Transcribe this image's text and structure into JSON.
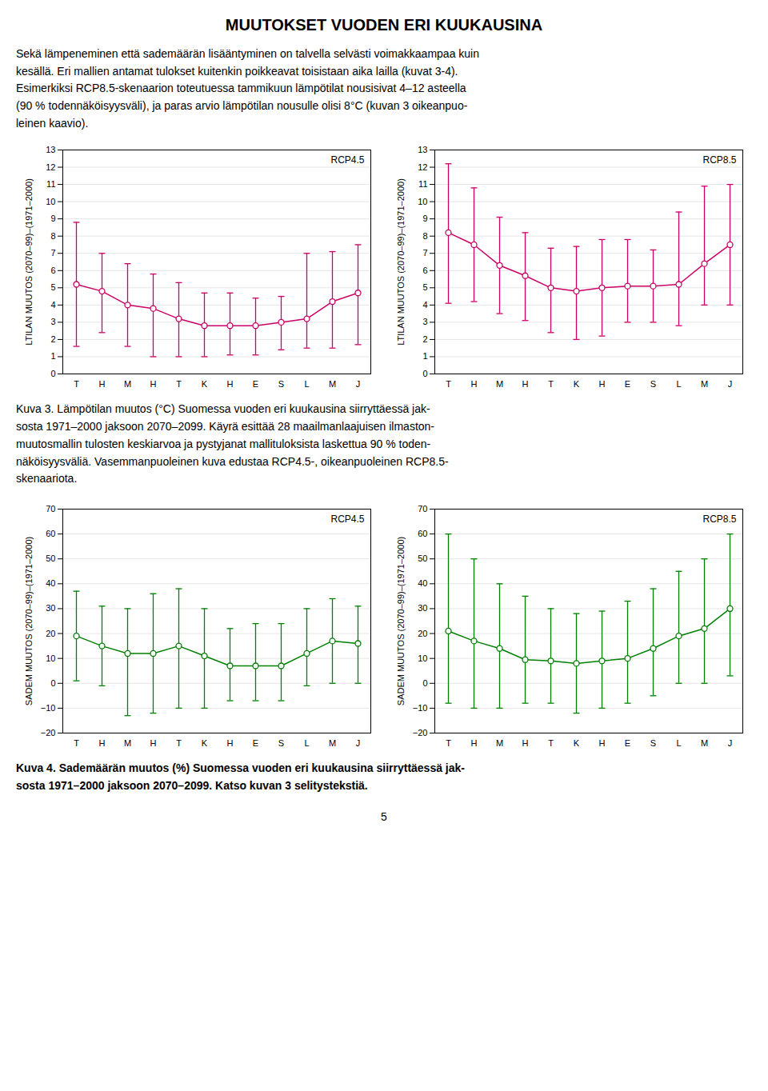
{
  "title": "MUUTOKSET VUODEN ERI KUUKAUSINA",
  "paragraph": [
    "Sekä lämpeneminen että sademäärän lisääntyminen on talvella selvästi voimakkaampaa kuin",
    "kesällä. Eri mallien antamat tulokset kuitenkin poikkeavat toisistaan aika lailla (kuvat 3-4).",
    "Esimerkiksi RCP8.5-skenaarion toteutuessa tammikuun lämpötilat nousisivat 4–12 asteella",
    "(90 % todennäköisyysväli), ja paras arvio lämpötilan nousulle olisi 8°C (kuvan 3 oikeanpuo-",
    "leinen kaavio)."
  ],
  "captions": [
    [
      "Kuva 3. Lämpötilan muutos (°C) Suomessa vuoden eri kuukausina siirryttäessä jak-",
      "sosta 1971–2000 jaksoon 2070–2099. Käyrä esittää 28 maailmanlaajuisen ilmaston-",
      "muutosmallin tulosten keskiarvoa ja pystyjanat mallituloksista laskettua 90 % toden-",
      "näköisyysväliä. Vasemmanpuoleinen kuva edustaa RCP4.5-, oikeanpuoleinen RCP8.5-",
      "skenaariota."
    ],
    [
      "Kuva 4. Sademäärän muutos (%) Suomessa vuoden eri kuukausina siirryttäessä jak-",
      "sosta 1971–2000 jaksoon 2070–2099. Katso kuvan 3 selitystekstiä."
    ]
  ],
  "page_number": "5",
  "chart_data": [
    {
      "type": "line",
      "annotation": "RCP4.5",
      "categories": [
        "T",
        "H",
        "M",
        "H",
        "T",
        "K",
        "H",
        "E",
        "S",
        "L",
        "M",
        "J"
      ],
      "ylabel": "LTILAN MUUTOS (2070–99)–(1971–2000)",
      "ylim": [
        0,
        13
      ],
      "yticks": [
        0,
        1,
        2,
        3,
        4,
        5,
        6,
        7,
        8,
        9,
        10,
        11,
        12,
        13
      ],
      "grid": true,
      "marker": "circle",
      "line_style": "solid",
      "color": "#CC0066",
      "values": [
        5.2,
        4.8,
        4.0,
        3.8,
        3.2,
        2.8,
        2.8,
        2.8,
        3.0,
        3.2,
        4.2,
        4.7
      ],
      "upper": [
        8.8,
        7.0,
        6.4,
        5.8,
        5.3,
        4.7,
        4.7,
        4.4,
        4.5,
        7.0,
        7.1,
        7.5
      ],
      "lower": [
        1.6,
        2.4,
        1.6,
        1.0,
        1.0,
        1.0,
        1.1,
        1.1,
        1.4,
        1.5,
        1.5,
        1.7
      ]
    },
    {
      "type": "line",
      "annotation": "RCP8.5",
      "categories": [
        "T",
        "H",
        "M",
        "H",
        "T",
        "K",
        "H",
        "E",
        "S",
        "L",
        "M",
        "J"
      ],
      "ylabel": "LTILAN MUUTOS (2070–99)–(1971–2000)",
      "ylim": [
        0,
        13
      ],
      "yticks": [
        0,
        1,
        2,
        3,
        4,
        5,
        6,
        7,
        8,
        9,
        10,
        11,
        12,
        13
      ],
      "grid": true,
      "marker": "circle",
      "line_style": "solid",
      "color": "#CC0066",
      "values": [
        8.2,
        7.5,
        6.3,
        5.7,
        5.0,
        4.8,
        5.0,
        5.1,
        5.1,
        5.2,
        6.4,
        7.5
      ],
      "upper": [
        12.2,
        10.8,
        9.1,
        8.2,
        7.3,
        7.4,
        7.8,
        7.8,
        7.2,
        9.4,
        10.9,
        11.0
      ],
      "lower": [
        4.1,
        4.2,
        3.5,
        3.1,
        2.4,
        2.0,
        2.2,
        3.0,
        3.0,
        2.8,
        4.0,
        4.0
      ]
    },
    {
      "type": "line",
      "annotation": "RCP4.5",
      "categories": [
        "T",
        "H",
        "M",
        "H",
        "T",
        "K",
        "H",
        "E",
        "S",
        "L",
        "M",
        "J"
      ],
      "ylabel": "SADEM MUUTOS (2070–99)–(1971–2000)",
      "ylim": [
        -20,
        70
      ],
      "yticks": [
        -20,
        -10,
        0,
        10,
        20,
        30,
        40,
        50,
        60,
        70
      ],
      "grid": true,
      "marker": "circle",
      "line_style": "solid",
      "color": "#008000",
      "values": [
        19.0,
        15.0,
        12.0,
        12.0,
        15.0,
        11.0,
        7.0,
        7.0,
        7.0,
        12.0,
        17.0,
        16.0
      ],
      "upper": [
        37.0,
        31.0,
        30.0,
        36.0,
        38.0,
        30.0,
        22.0,
        24.0,
        24.0,
        30.0,
        34.0,
        31.0
      ],
      "lower": [
        1.0,
        -1.0,
        -13.0,
        -12.0,
        -10.0,
        -10.0,
        -7.0,
        -7.0,
        -7.0,
        -1.0,
        0.0,
        0.0
      ]
    },
    {
      "type": "line",
      "annotation": "RCP8.5",
      "categories": [
        "T",
        "H",
        "M",
        "H",
        "T",
        "K",
        "H",
        "E",
        "S",
        "L",
        "M",
        "J"
      ],
      "ylabel": "SADEM MUUTOS (2070–99)–(1971–2000)",
      "ylim": [
        -20,
        70
      ],
      "yticks": [
        -20,
        -10,
        0,
        10,
        20,
        30,
        40,
        50,
        60,
        70
      ],
      "grid": true,
      "marker": "circle",
      "line_style": "solid",
      "color": "#008000",
      "values": [
        21.0,
        17.0,
        14.0,
        9.5,
        9.0,
        8.0,
        9.0,
        10.0,
        14.0,
        19.0,
        22.0,
        30.0
      ],
      "upper": [
        60.0,
        50.0,
        40.0,
        35.0,
        30.0,
        28.0,
        29.0,
        33.0,
        38.0,
        45.0,
        50.0,
        60.0
      ],
      "lower": [
        -8.0,
        -10.0,
        -10.0,
        -8.0,
        -8.0,
        -12.0,
        -10.0,
        -8.0,
        -5.0,
        0.0,
        0.0,
        3.0
      ]
    }
  ]
}
